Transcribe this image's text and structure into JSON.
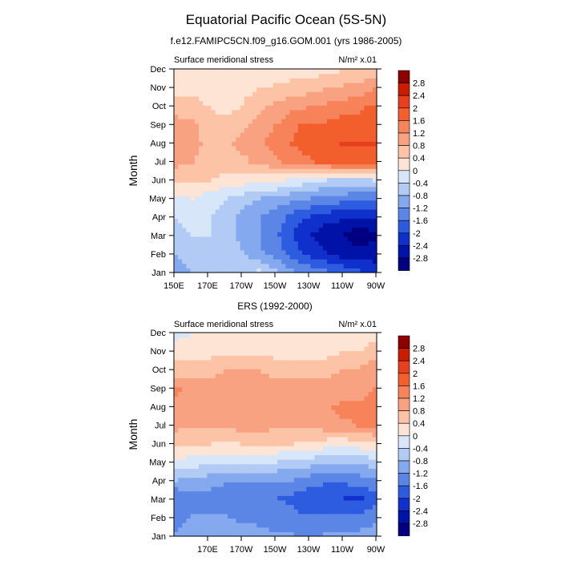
{
  "title": "Equatorial Pacific Ocean (5S-5N)",
  "colorbar": {
    "levels": [
      "2.8",
      "2.4",
      "2",
      "1.6",
      "1.2",
      "0.8",
      "0.4",
      "0",
      "-0.4",
      "-0.8",
      "-1.2",
      "-1.6",
      "-2",
      "-2.4",
      "-2.8"
    ],
    "colors": [
      "#8e0000",
      "#cc1c00",
      "#e8401f",
      "#f25f2d",
      "#f7835a",
      "#f9a282",
      "#fcc3a6",
      "#fde4d4",
      "#d8e6fa",
      "#b1cbf5",
      "#85a9ee",
      "#5b86e6",
      "#2e5ce0",
      "#1030cc",
      "#0012a8",
      "#000080"
    ]
  },
  "chart_data": [
    {
      "type": "heatmap",
      "subtitle": "f.e12.FAMIPC5CN.f09_g16.GOM.001 (yrs 1986-2005)",
      "left_label": "Surface meridional stress",
      "right_label": "N/m² x.01",
      "ylabel": "Month",
      "months": [
        "Jan",
        "Feb",
        "Mar",
        "Apr",
        "May",
        "Jun",
        "Jul",
        "Aug",
        "Sep",
        "Oct",
        "Nov",
        "Dec"
      ],
      "x_ticks": [
        "150E",
        "170E",
        "170W",
        "150W",
        "130W",
        "110W",
        "90W"
      ],
      "x_range": [
        150,
        270
      ],
      "grid": false,
      "values": [
        [
          -1.0,
          -0.8,
          -0.5,
          -0.5,
          -0.5,
          -0.4,
          -0.8,
          -1.2,
          -1.4,
          -1.6,
          -1.8,
          -2.0,
          -2.2
        ],
        [
          -0.8,
          -0.6,
          -0.5,
          -0.6,
          -0.8,
          -1.1,
          -1.4,
          -1.8,
          -2.2,
          -2.4,
          -2.6,
          -2.7,
          -2.6
        ],
        [
          -0.5,
          -0.4,
          -0.4,
          -0.6,
          -0.9,
          -1.2,
          -1.5,
          -2.0,
          -2.4,
          -2.6,
          -2.8,
          -3.0,
          -2.9
        ],
        [
          -0.4,
          -0.3,
          -0.4,
          -0.6,
          -0.9,
          -1.2,
          -1.4,
          -1.7,
          -2.0,
          -2.2,
          -2.3,
          -2.4,
          -2.3
        ],
        [
          -0.1,
          0.0,
          -0.2,
          -0.4,
          -0.6,
          -0.8,
          -0.9,
          -1.1,
          -1.2,
          -1.3,
          -1.4,
          -1.5,
          -1.5
        ],
        [
          0.5,
          0.5,
          0.4,
          0.3,
          0.2,
          0.2,
          0.1,
          -0.1,
          -0.2,
          -0.4,
          -0.5,
          -0.5,
          -0.4
        ],
        [
          0.9,
          0.8,
          0.6,
          0.6,
          0.7,
          0.9,
          1.1,
          1.3,
          1.5,
          1.7,
          1.8,
          1.9,
          1.8
        ],
        [
          1.0,
          0.9,
          0.7,
          0.7,
          0.9,
          1.1,
          1.4,
          1.6,
          1.8,
          1.9,
          2.0,
          2.0,
          2.0
        ],
        [
          1.0,
          0.9,
          0.6,
          0.5,
          0.7,
          1.0,
          1.2,
          1.5,
          1.7,
          1.7,
          1.8,
          1.8,
          1.9
        ],
        [
          0.6,
          0.6,
          0.4,
          0.3,
          0.4,
          0.7,
          0.9,
          1.1,
          1.2,
          1.3,
          1.4,
          1.5,
          1.7
        ],
        [
          0.3,
          0.3,
          0.2,
          0.2,
          0.3,
          0.4,
          0.5,
          0.6,
          0.7,
          0.8,
          0.9,
          1.0,
          1.2
        ],
        [
          0.0,
          0.0,
          0.1,
          0.1,
          0.1,
          0.1,
          0.2,
          0.2,
          0.2,
          0.3,
          0.4,
          0.5,
          0.6
        ]
      ]
    },
    {
      "type": "heatmap",
      "subtitle": "ERS (1992-2000)",
      "left_label": "Surface meridional stress",
      "right_label": "N/m² x.01",
      "ylabel": "Month",
      "months": [
        "Jan",
        "Feb",
        "Mar",
        "Apr",
        "May",
        "Jun",
        "Jul",
        "Aug",
        "Sep",
        "Oct",
        "Nov",
        "Dec"
      ],
      "x_ticks": [
        "170E",
        "170W",
        "150W",
        "130W",
        "110W",
        "90W"
      ],
      "x_range": [
        153,
        270
      ],
      "grid": false,
      "values": [
        [
          -1.2,
          -1.0,
          -1.0,
          -1.0,
          -1.0,
          -1.1,
          -1.2,
          -1.2,
          -1.3,
          -1.2,
          -1.2,
          -1.1,
          -1.0
        ],
        [
          -1.3,
          -1.2,
          -1.2,
          -1.2,
          -1.3,
          -1.3,
          -1.4,
          -1.5,
          -1.6,
          -1.6,
          -1.6,
          -1.5,
          -1.4
        ],
        [
          -1.6,
          -1.4,
          -1.4,
          -1.5,
          -1.5,
          -1.5,
          -1.6,
          -1.7,
          -1.9,
          -2.0,
          -2.0,
          -2.1,
          -1.8
        ],
        [
          -0.8,
          -0.9,
          -1.0,
          -1.1,
          -1.1,
          -1.1,
          -1.2,
          -1.2,
          -1.4,
          -1.5,
          -1.5,
          -1.4,
          -1.3
        ],
        [
          -0.1,
          -0.2,
          -0.3,
          -0.3,
          -0.3,
          -0.3,
          -0.4,
          -0.5,
          -0.6,
          -0.7,
          -0.7,
          -0.7,
          -0.6
        ],
        [
          0.5,
          0.5,
          0.4,
          0.3,
          0.4,
          0.4,
          0.4,
          0.4,
          0.3,
          0.2,
          0.1,
          0.2,
          0.3
        ],
        [
          0.9,
          0.8,
          0.9,
          0.9,
          1.0,
          1.0,
          0.9,
          0.9,
          0.9,
          1.0,
          1.1,
          1.2,
          1.3
        ],
        [
          1.0,
          0.9,
          1.0,
          1.1,
          1.1,
          1.0,
          1.0,
          1.0,
          1.0,
          1.1,
          1.3,
          1.3,
          1.4
        ],
        [
          1.3,
          1.0,
          1.0,
          1.0,
          1.0,
          1.0,
          1.0,
          1.0,
          1.0,
          1.0,
          1.0,
          1.0,
          1.2
        ],
        [
          0.6,
          0.7,
          0.7,
          0.8,
          0.8,
          0.8,
          0.7,
          0.7,
          0.7,
          0.7,
          0.8,
          0.9,
          1.1
        ],
        [
          0.2,
          0.3,
          0.3,
          0.3,
          0.3,
          0.3,
          0.3,
          0.3,
          0.2,
          0.3,
          0.4,
          0.4,
          0.6
        ],
        [
          -0.1,
          0.0,
          0.1,
          0.1,
          0.1,
          0.1,
          0.0,
          0.0,
          0.1,
          0.1,
          0.1,
          0.2,
          0.3
        ]
      ]
    }
  ]
}
